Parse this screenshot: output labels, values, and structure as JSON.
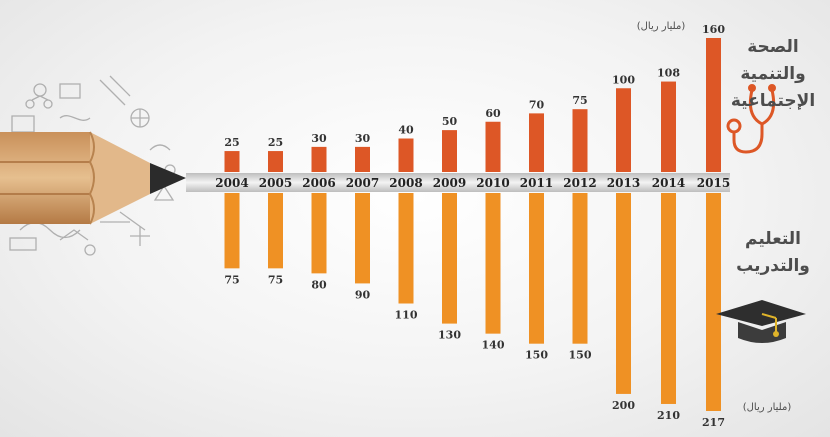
{
  "chart_data": {
    "type": "bar",
    "categories": [
      "2004",
      "2005",
      "2006",
      "2007",
      "2008",
      "2009",
      "2010",
      "2011",
      "2012",
      "2013",
      "2014",
      "2015"
    ],
    "series": [
      {
        "name": "الصحة والتنمية الإجتماعية",
        "values": [
          25,
          25,
          30,
          30,
          40,
          50,
          60,
          70,
          75,
          100,
          108,
          160
        ],
        "color": "#dd5726"
      },
      {
        "name": "التعليم والتدريب",
        "values": [
          75,
          75,
          80,
          90,
          110,
          130,
          140,
          150,
          150,
          200,
          210,
          217
        ],
        "color": "#ef9124"
      }
    ],
    "unit_label_top": "(مليار ريال)",
    "unit_label_bottom": "(مليار ريال)",
    "ylim": [
      0,
      217
    ]
  },
  "colors": {
    "health": "#dd5726",
    "education": "#ef9124",
    "text": "#333333",
    "icon": "#dd5726"
  },
  "icons": [
    "pencil-icon",
    "stethoscope-icon",
    "graduation-cap-icon",
    "doodle-icons"
  ]
}
